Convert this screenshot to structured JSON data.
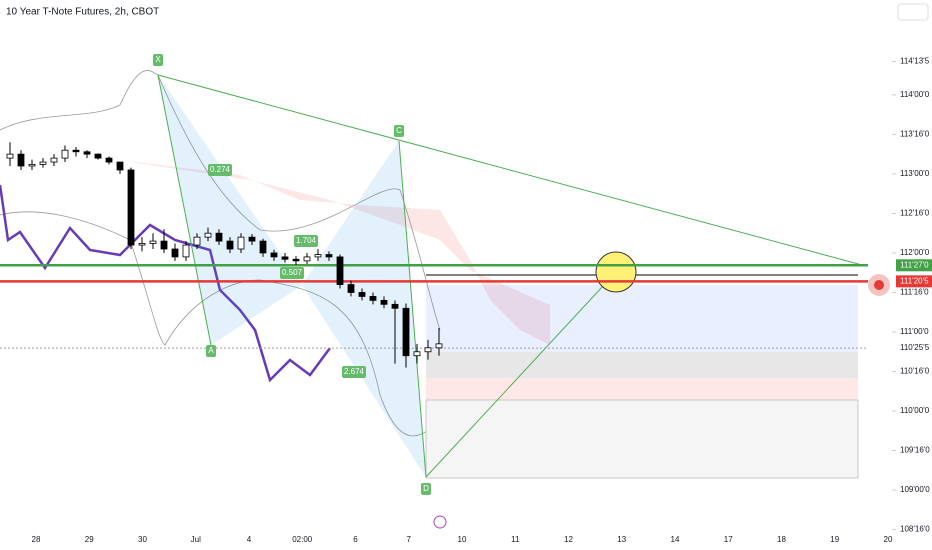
{
  "chart_data": {
    "type": "candlestick",
    "title": "10 Year T-Note Futures, 2h, CBOT",
    "candles": {
      "open": [
        113.2,
        113.25,
        113.1,
        113.12,
        113.15,
        113.2,
        113.3,
        113.28,
        113.25,
        113.2,
        113.15,
        113.05,
        112.1,
        112.12,
        112.15,
        112.05,
        111.95,
        112.1,
        112.2,
        112.25,
        112.15,
        112.05,
        112.2,
        112.15,
        112.0,
        111.95,
        111.92,
        111.9,
        111.95,
        111.98,
        111.95,
        111.6,
        111.5,
        111.45,
        111.4,
        111.35,
        111.3,
        110.7,
        110.75,
        110.8
      ],
      "high": [
        113.4,
        113.3,
        113.18,
        113.2,
        113.25,
        113.36,
        113.34,
        113.3,
        113.26,
        113.22,
        113.1,
        113.08,
        112.2,
        112.25,
        112.3,
        112.12,
        112.15,
        112.25,
        112.32,
        112.3,
        112.2,
        112.25,
        112.24,
        112.18,
        112.04,
        112.0,
        111.96,
        112.0,
        112.05,
        112.02,
        111.98,
        111.65,
        111.55,
        111.5,
        111.45,
        111.4,
        111.36,
        110.85,
        110.9,
        111.05
      ],
      "low": [
        113.1,
        113.05,
        113.05,
        113.08,
        113.1,
        113.15,
        113.22,
        113.2,
        113.18,
        113.12,
        113.0,
        112.05,
        112.02,
        112.05,
        112.0,
        111.9,
        111.9,
        112.05,
        112.15,
        112.1,
        112.0,
        112.0,
        112.1,
        111.95,
        111.9,
        111.88,
        111.85,
        111.86,
        111.9,
        111.9,
        111.55,
        111.45,
        111.4,
        111.35,
        111.3,
        110.6,
        110.55,
        110.6,
        110.65,
        110.7
      ],
      "close": [
        113.25,
        113.1,
        113.12,
        113.15,
        113.2,
        113.3,
        113.28,
        113.25,
        113.2,
        113.15,
        113.05,
        112.1,
        112.12,
        112.15,
        112.05,
        111.95,
        112.1,
        112.2,
        112.25,
        112.15,
        112.05,
        112.2,
        112.15,
        112.0,
        111.95,
        111.92,
        111.9,
        111.95,
        111.98,
        111.95,
        111.6,
        111.5,
        111.45,
        111.4,
        111.35,
        111.3,
        110.7,
        110.75,
        110.8,
        110.85
      ]
    },
    "up_color": "#ffffff",
    "down_color": "#000000",
    "x_labels": [
      "28",
      "29",
      "30",
      "Jul",
      "4",
      "02:00",
      "6",
      "7",
      "10",
      "11",
      "12",
      "13",
      "14",
      "17",
      "18",
      "19",
      "20"
    ],
    "ylim": [
      108.47,
      115.2
    ],
    "yticks": [
      {
        "value": 114.421875,
        "label": "114'13'5"
      },
      {
        "value": 114,
        "label": "114'00'0"
      },
      {
        "value": 113.5,
        "label": "113'16'0"
      },
      {
        "value": 113,
        "label": "113'00'0"
      },
      {
        "value": 112.5,
        "label": "112'16'0"
      },
      {
        "value": 112,
        "label": "112'00'0"
      },
      {
        "value": 111.5,
        "label": "111'16'0"
      },
      {
        "value": 111,
        "label": "111'00'0"
      },
      {
        "value": 110.5,
        "label": "110'16'0"
      },
      {
        "value": 110,
        "label": "110'00'0"
      },
      {
        "value": 109.5,
        "label": "109'16'0"
      },
      {
        "value": 109,
        "label": "109'00'0"
      },
      {
        "value": 108.5,
        "label": "108'16'0"
      }
    ],
    "price_lines": [
      {
        "value": 111.84375,
        "label": "111'27'0",
        "color": "#43a047"
      },
      {
        "value": 111.640625,
        "label": "111'20'5",
        "color": "#e53935"
      },
      {
        "value": 110.796875,
        "label": "110'25'5",
        "color": "#9e9e9e"
      }
    ],
    "annotations": [
      "X",
      "A",
      "C",
      "D",
      "0.274",
      "1.704",
      "0.507",
      "2.674"
    ]
  }
}
